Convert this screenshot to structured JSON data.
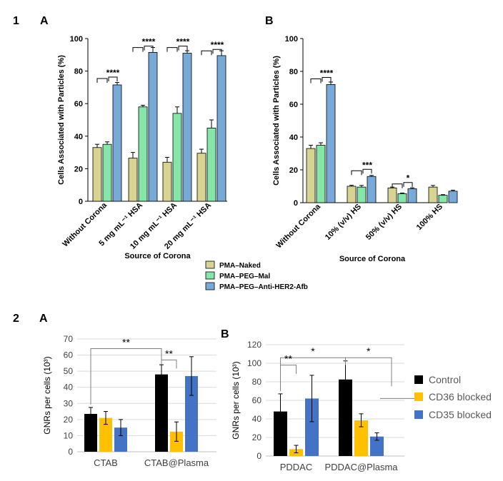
{
  "panel_labels": {
    "row1": "1",
    "row1a": "A",
    "row1b": "B",
    "row2": "2",
    "row2a": "A",
    "row2b": "B"
  },
  "colors": {
    "naked": "#d6d393",
    "mal": "#86e5a8",
    "her2": "#78a9d9",
    "control": "#000000",
    "cd36": "#ffc000",
    "cd35": "#4472c4"
  },
  "legend_top": [
    {
      "label": "PMA–Naked",
      "color": "#d6d393"
    },
    {
      "label": "PMA–PEG–Mal",
      "color": "#86e5a8"
    },
    {
      "label": "PMA–PEG–Anti-HER2-Afb",
      "color": "#78a9d9"
    }
  ],
  "legend_bottom": [
    {
      "label": "Control",
      "color": "#000000"
    },
    {
      "label": "CD36 blocked",
      "color": "#ffc000"
    },
    {
      "label": "CD35 blocked",
      "color": "#4472c4"
    }
  ],
  "chart_data": [
    {
      "id": "1A",
      "type": "bar",
      "ylabel": "Cells Associated with Particles (%)",
      "xlabel": "Source of Corona",
      "ylim": [
        0,
        100
      ],
      "yticks": [
        "0",
        "20",
        "40",
        "60",
        "80",
        "100"
      ],
      "categories": [
        "Without Corona",
        "5 mg mL⁻¹ HSA",
        "10 mg mL⁻¹ HSA",
        "20 mg mL⁻¹ HSA"
      ],
      "series": [
        {
          "name": "PMA–Naked",
          "values": [
            33,
            26.5,
            24,
            29.5
          ],
          "errors": [
            2,
            3.5,
            3,
            2.5
          ]
        },
        {
          "name": "PMA–PEG–Mal",
          "values": [
            35,
            58,
            54,
            45
          ],
          "errors": [
            1.5,
            1,
            4,
            5
          ]
        },
        {
          "name": "PMA–PEG–Anti-HER2-Afb",
          "values": [
            71.5,
            91.5,
            91,
            89.5
          ],
          "errors": [
            1.5,
            3,
            1.5,
            3
          ]
        }
      ],
      "significance": [
        {
          "label": "****",
          "group": 0,
          "level": 75
        },
        {
          "label": "****",
          "group": 1,
          "level": 94
        },
        {
          "label": "****",
          "group": 2,
          "level": 94
        },
        {
          "label": "****",
          "group": 3,
          "level": 92
        }
      ]
    },
    {
      "id": "1B",
      "type": "bar",
      "ylabel": "Cells Associated with Particles (%)",
      "xlabel": "Source of Corona",
      "ylim": [
        0,
        100
      ],
      "yticks": [
        "0",
        "20",
        "40",
        "60",
        "80",
        "100"
      ],
      "categories": [
        "Without Corona",
        "10% (v/v) HS",
        "50% (v/v) HS",
        "100% HS"
      ],
      "series": [
        {
          "name": "PMA–Naked",
          "values": [
            33,
            10,
            9,
            9.5
          ],
          "errors": [
            2,
            0.6,
            0.5,
            1
          ]
        },
        {
          "name": "PMA–PEG–Mal",
          "values": [
            35,
            9.5,
            5.5,
            4.5
          ],
          "errors": [
            1.5,
            1,
            0.4,
            0.4
          ]
        },
        {
          "name": "PMA–PEG–Anti-HER2-Afb",
          "values": [
            72,
            16,
            8.5,
            7
          ],
          "errors": [
            1.5,
            0.6,
            0.6,
            0.6
          ]
        }
      ],
      "significance": [
        {
          "label": "****",
          "group": 0,
          "level": 75
        },
        {
          "label": "***",
          "group": 1,
          "level": 19
        },
        {
          "label": "*",
          "group": 2,
          "level": 11
        }
      ]
    },
    {
      "id": "2A",
      "type": "bar",
      "ylabel": "GNRs per cells (10³)",
      "ylim": [
        0,
        70
      ],
      "yticks": [
        "0",
        "10",
        "20",
        "30",
        "40",
        "50",
        "60",
        "70"
      ],
      "categories": [
        "CTAB",
        "CTAB@Plasma"
      ],
      "series": [
        {
          "name": "Control",
          "values": [
            23.5,
            48
          ],
          "errors": [
            4,
            6
          ]
        },
        {
          "name": "CD36 blocked",
          "values": [
            21,
            12.5
          ],
          "errors": [
            4,
            6
          ]
        },
        {
          "name": "CD35 blocked",
          "values": [
            15,
            47
          ],
          "errors": [
            5,
            12
          ]
        }
      ],
      "significance": [
        {
          "label": "**",
          "type": "across",
          "level": 64
        },
        {
          "label": "**",
          "type": "within",
          "group": 1,
          "level": 57
        }
      ]
    },
    {
      "id": "2B",
      "type": "bar",
      "ylabel": "GNRs per cells (10³)",
      "ylim": [
        0,
        120
      ],
      "yticks": [
        "0",
        "20",
        "40",
        "60",
        "80",
        "100",
        "120"
      ],
      "categories": [
        "PDDAC",
        "PDDAC@Plasma"
      ],
      "series": [
        {
          "name": "Control",
          "values": [
            48,
            82.5
          ],
          "errors": [
            19,
            20
          ]
        },
        {
          "name": "CD36 blocked",
          "values": [
            7.5,
            38.5
          ],
          "errors": [
            4,
            7
          ]
        },
        {
          "name": "CD35 blocked",
          "values": [
            62,
            21
          ],
          "errors": [
            25,
            4
          ]
        }
      ],
      "significance": [
        {
          "label": "*",
          "type": "across",
          "level": 106
        },
        {
          "label": "**",
          "type": "within",
          "group": 0,
          "level": 98
        },
        {
          "label": "*",
          "type": "within-wide",
          "group": 1,
          "level": 106
        }
      ]
    }
  ]
}
